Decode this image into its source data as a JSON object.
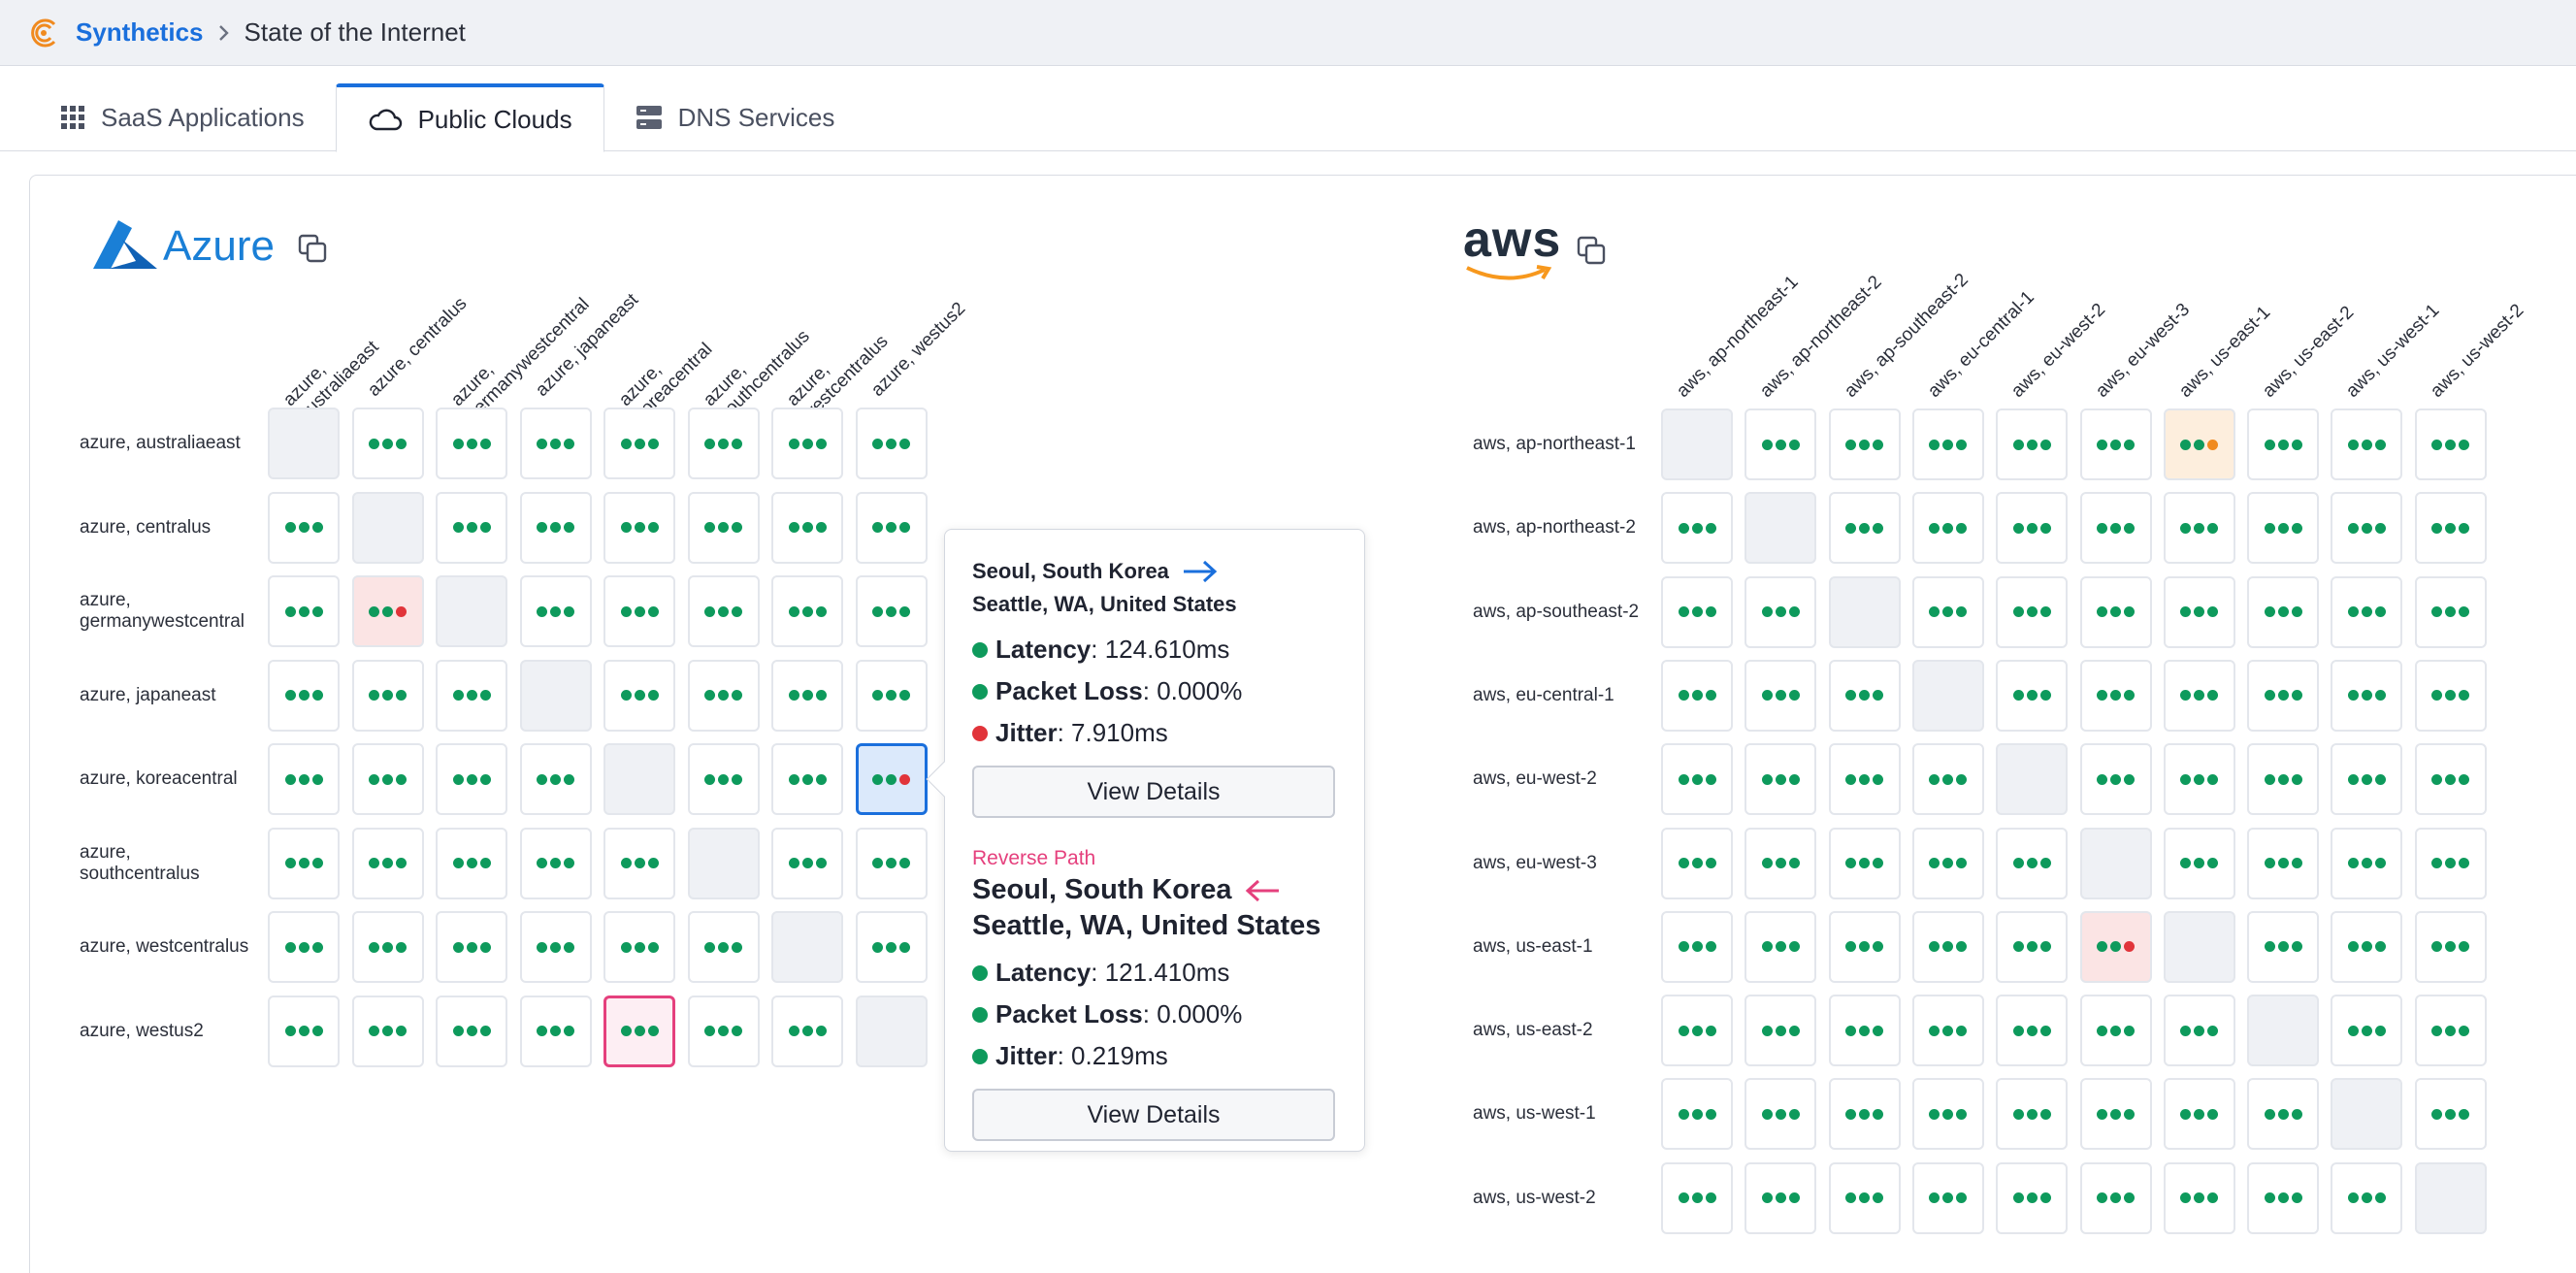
{
  "header": {
    "app_name": "Synthetics",
    "page": "State of the Internet"
  },
  "tabs": [
    {
      "label": "SaaS Applications",
      "icon": "grid-icon",
      "active": false
    },
    {
      "label": "Public Clouds",
      "icon": "cloud-icon",
      "active": true
    },
    {
      "label": "DNS Services",
      "icon": "server-icon",
      "active": false
    }
  ],
  "colors": {
    "accent": "#1a6fdc",
    "ok": "#0e9a5c",
    "error": "#e1343a",
    "warning": "#f08a1f",
    "reverse": "#e5407d"
  },
  "azure": {
    "brand": "Azure",
    "regions": [
      "azure, australiaeast",
      "azure, centralus",
      "azure, germanywestcentral",
      "azure, japaneast",
      "azure, koreacentral",
      "azure, southcentralus",
      "azure, westcentralus",
      "azure, westus2"
    ],
    "status": [
      [
        "self",
        "ok",
        "ok",
        "ok",
        "ok",
        "ok",
        "ok",
        "ok"
      ],
      [
        "ok",
        "self",
        "ok",
        "ok",
        "ok",
        "ok",
        "ok",
        "ok"
      ],
      [
        "ok",
        "error",
        "self",
        "ok",
        "ok",
        "ok",
        "ok",
        "ok"
      ],
      [
        "ok",
        "ok",
        "ok",
        "self",
        "ok",
        "ok",
        "ok",
        "ok"
      ],
      [
        "ok",
        "ok",
        "ok",
        "ok",
        "self",
        "ok",
        "ok",
        "error"
      ],
      [
        "ok",
        "ok",
        "ok",
        "ok",
        "ok",
        "self",
        "ok",
        "ok"
      ],
      [
        "ok",
        "ok",
        "ok",
        "ok",
        "ok",
        "ok",
        "self",
        "ok"
      ],
      [
        "ok",
        "ok",
        "ok",
        "ok",
        "ok",
        "ok",
        "ok",
        "self"
      ]
    ],
    "selected_cell": [
      4,
      7
    ],
    "reverse_cell": [
      7,
      4
    ]
  },
  "aws": {
    "brand": "aws",
    "regions": [
      "aws, ap-northeast-1",
      "aws, ap-northeast-2",
      "aws, ap-southeast-2",
      "aws, eu-central-1",
      "aws, eu-west-2",
      "aws, eu-west-3",
      "aws, us-east-1",
      "aws, us-east-2",
      "aws, us-west-1",
      "aws, us-west-2"
    ],
    "status": [
      [
        "self",
        "ok",
        "ok",
        "ok",
        "ok",
        "ok",
        "warning",
        "ok",
        "ok",
        "ok"
      ],
      [
        "ok",
        "self",
        "ok",
        "ok",
        "ok",
        "ok",
        "ok",
        "ok",
        "ok",
        "ok"
      ],
      [
        "ok",
        "ok",
        "self",
        "ok",
        "ok",
        "ok",
        "ok",
        "ok",
        "ok",
        "ok"
      ],
      [
        "ok",
        "ok",
        "ok",
        "self",
        "ok",
        "ok",
        "ok",
        "ok",
        "ok",
        "ok"
      ],
      [
        "ok",
        "ok",
        "ok",
        "ok",
        "self",
        "ok",
        "ok",
        "ok",
        "ok",
        "ok"
      ],
      [
        "ok",
        "ok",
        "ok",
        "ok",
        "ok",
        "self",
        "ok",
        "ok",
        "ok",
        "ok"
      ],
      [
        "ok",
        "ok",
        "ok",
        "ok",
        "ok",
        "error",
        "self",
        "ok",
        "ok",
        "ok"
      ],
      [
        "ok",
        "ok",
        "ok",
        "ok",
        "ok",
        "ok",
        "ok",
        "self",
        "ok",
        "ok"
      ],
      [
        "ok",
        "ok",
        "ok",
        "ok",
        "ok",
        "ok",
        "ok",
        "ok",
        "self",
        "ok"
      ],
      [
        "ok",
        "ok",
        "ok",
        "ok",
        "ok",
        "ok",
        "ok",
        "ok",
        "ok",
        "self"
      ]
    ]
  },
  "tooltip": {
    "forward": {
      "from": "Seoul, South Korea",
      "to": "Seattle, WA, United States",
      "latency_label": "Latency",
      "latency": "124.610ms",
      "packet_loss_label": "Packet Loss",
      "packet_loss": "0.000%",
      "jitter_label": "Jitter",
      "jitter": "7.910ms",
      "button": "View Details"
    },
    "reverse": {
      "label": "Reverse Path",
      "from": "Seoul, South Korea",
      "to": "Seattle, WA, United States",
      "latency_label": "Latency",
      "latency": "121.410ms",
      "packet_loss_label": "Packet Loss",
      "packet_loss": "0.000%",
      "jitter_label": "Jitter",
      "jitter": "0.219ms",
      "button": "View Details"
    }
  }
}
